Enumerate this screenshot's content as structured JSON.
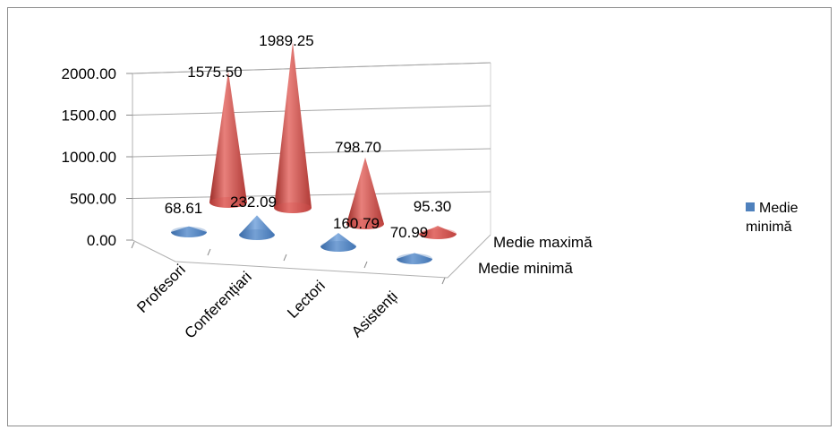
{
  "chart_data": {
    "type": "bar",
    "subtype": "3d-cone",
    "title": "",
    "categories": [
      "Profesori",
      "Conferențiari",
      "Lectori",
      "Asistenți"
    ],
    "series": [
      {
        "name": "Medie minimă",
        "values": [
          68.61,
          232.09,
          160.79,
          70.99
        ],
        "labels": [
          "68.61",
          "232.09",
          "160.79",
          "70.99"
        ],
        "color": "#4f81bd"
      },
      {
        "name": "Medie maximă",
        "values": [
          1575.5,
          1989.25,
          798.7,
          95.3
        ],
        "labels": [
          "1575.50",
          "1989.25",
          "798.70",
          "95.30"
        ],
        "color": "#c0504d"
      }
    ],
    "yticks": [
      "0.00",
      "500.00",
      "1000.00",
      "1500.00",
      "2000.00"
    ],
    "ylim": [
      0,
      2000
    ],
    "depth_labels": [
      "Medie maximă",
      "Medie minimă"
    ],
    "grid": true,
    "legend": {
      "position": "right",
      "entries": [
        "Medie minimă"
      ]
    }
  }
}
